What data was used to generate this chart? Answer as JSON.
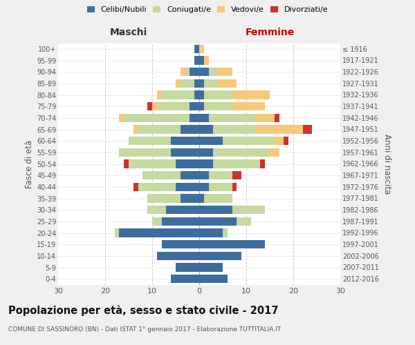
{
  "age_groups": [
    "0-4",
    "5-9",
    "10-14",
    "15-19",
    "20-24",
    "25-29",
    "30-34",
    "35-39",
    "40-44",
    "45-49",
    "50-54",
    "55-59",
    "60-64",
    "65-69",
    "70-74",
    "75-79",
    "80-84",
    "85-89",
    "90-94",
    "95-99",
    "100+"
  ],
  "birth_years": [
    "2012-2016",
    "2007-2011",
    "2002-2006",
    "1997-2001",
    "1992-1996",
    "1987-1991",
    "1982-1986",
    "1977-1981",
    "1972-1976",
    "1967-1971",
    "1962-1966",
    "1957-1961",
    "1952-1956",
    "1947-1951",
    "1942-1946",
    "1937-1941",
    "1932-1936",
    "1927-1931",
    "1922-1926",
    "1917-1921",
    "≤ 1916"
  ],
  "males": {
    "celibi": [
      6,
      5,
      9,
      8,
      17,
      8,
      7,
      4,
      5,
      4,
      5,
      6,
      6,
      4,
      2,
      2,
      1,
      1,
      2,
      1,
      1
    ],
    "coniugati": [
      0,
      0,
      0,
      0,
      1,
      2,
      4,
      7,
      8,
      8,
      10,
      11,
      9,
      9,
      14,
      7,
      7,
      3,
      1,
      0,
      0
    ],
    "vedovi": [
      0,
      0,
      0,
      0,
      0,
      0,
      0,
      0,
      0,
      0,
      0,
      0,
      0,
      1,
      1,
      1,
      1,
      1,
      1,
      0,
      0
    ],
    "divorziati": [
      0,
      0,
      0,
      0,
      0,
      0,
      0,
      0,
      1,
      0,
      1,
      0,
      0,
      0,
      0,
      1,
      0,
      0,
      0,
      0,
      0
    ]
  },
  "females": {
    "nubili": [
      6,
      5,
      9,
      14,
      5,
      8,
      7,
      1,
      2,
      2,
      3,
      3,
      5,
      3,
      2,
      1,
      1,
      1,
      2,
      1,
      0
    ],
    "coniugate": [
      0,
      0,
      0,
      0,
      1,
      3,
      7,
      6,
      5,
      5,
      10,
      12,
      11,
      9,
      10,
      6,
      6,
      3,
      2,
      0,
      0
    ],
    "vedove": [
      0,
      0,
      0,
      0,
      0,
      0,
      0,
      0,
      0,
      0,
      0,
      2,
      2,
      10,
      4,
      7,
      8,
      4,
      3,
      1,
      1
    ],
    "divorziate": [
      0,
      0,
      0,
      0,
      0,
      0,
      0,
      0,
      1,
      2,
      1,
      0,
      1,
      2,
      1,
      0,
      0,
      0,
      0,
      0,
      0
    ]
  },
  "colors": {
    "celibi": "#3d6d9e",
    "coniugati": "#c5d9a0",
    "vedovi": "#f5c87a",
    "divorziati": "#d03030"
  },
  "xlim": 30,
  "title": "Popolazione per età, sesso e stato civile - 2017",
  "subtitle": "COMUNE DI SASSINORO (BN) - Dati ISTAT 1° gennaio 2017 - Elaborazione TUTTITALIA.IT",
  "ylabel": "Fasce di età",
  "ylabel_right": "Anni di nascita",
  "xlabel_left": "Maschi",
  "xlabel_right": "Femmine",
  "bg_color": "#f0f0f0",
  "plot_bg": "#ffffff"
}
